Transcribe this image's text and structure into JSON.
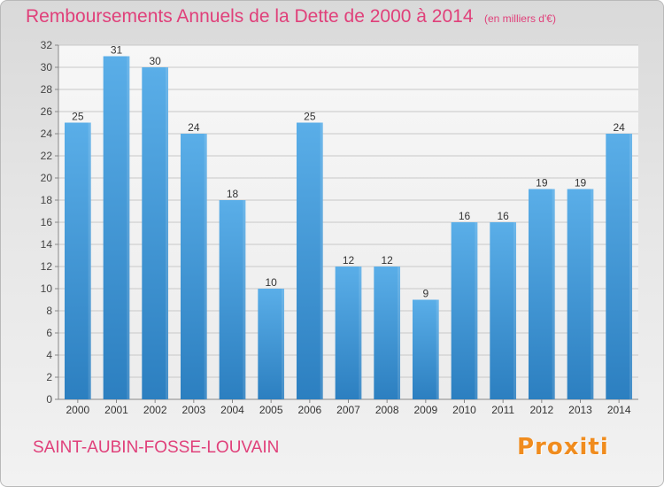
{
  "header": {
    "title": "Remboursements Annuels de la Dette de 2000 à 2014",
    "unit": "(en milliers d'€)"
  },
  "footer": {
    "commune": "SAINT-AUBIN-FOSSE-LOUVAIN",
    "brand": "Proxiti"
  },
  "colors": {
    "title": "#e0407a",
    "bar_top": "#5aaee8",
    "bar_bottom": "#2c7fc0",
    "grid": "#c8c8c8",
    "logo_orange": "#f08c1e"
  },
  "chart_data": {
    "type": "bar",
    "categories": [
      "2000",
      "2001",
      "2002",
      "2003",
      "2004",
      "2005",
      "2006",
      "2007",
      "2008",
      "2009",
      "2010",
      "2011",
      "2012",
      "2013",
      "2014"
    ],
    "values": [
      25,
      31,
      30,
      24,
      18,
      10,
      25,
      12,
      12,
      9,
      16,
      16,
      19,
      19,
      24
    ],
    "data_labels": [
      "25",
      "31",
      "30",
      "24",
      "18",
      "10",
      "25",
      "12",
      "12",
      "9",
      "16",
      "16",
      "19",
      "19",
      "24"
    ],
    "ylim": [
      0,
      32
    ],
    "yticks": [
      0,
      2,
      4,
      6,
      8,
      10,
      12,
      14,
      16,
      18,
      20,
      22,
      24,
      26,
      28,
      30,
      32
    ],
    "grid": true,
    "legend": "none"
  }
}
